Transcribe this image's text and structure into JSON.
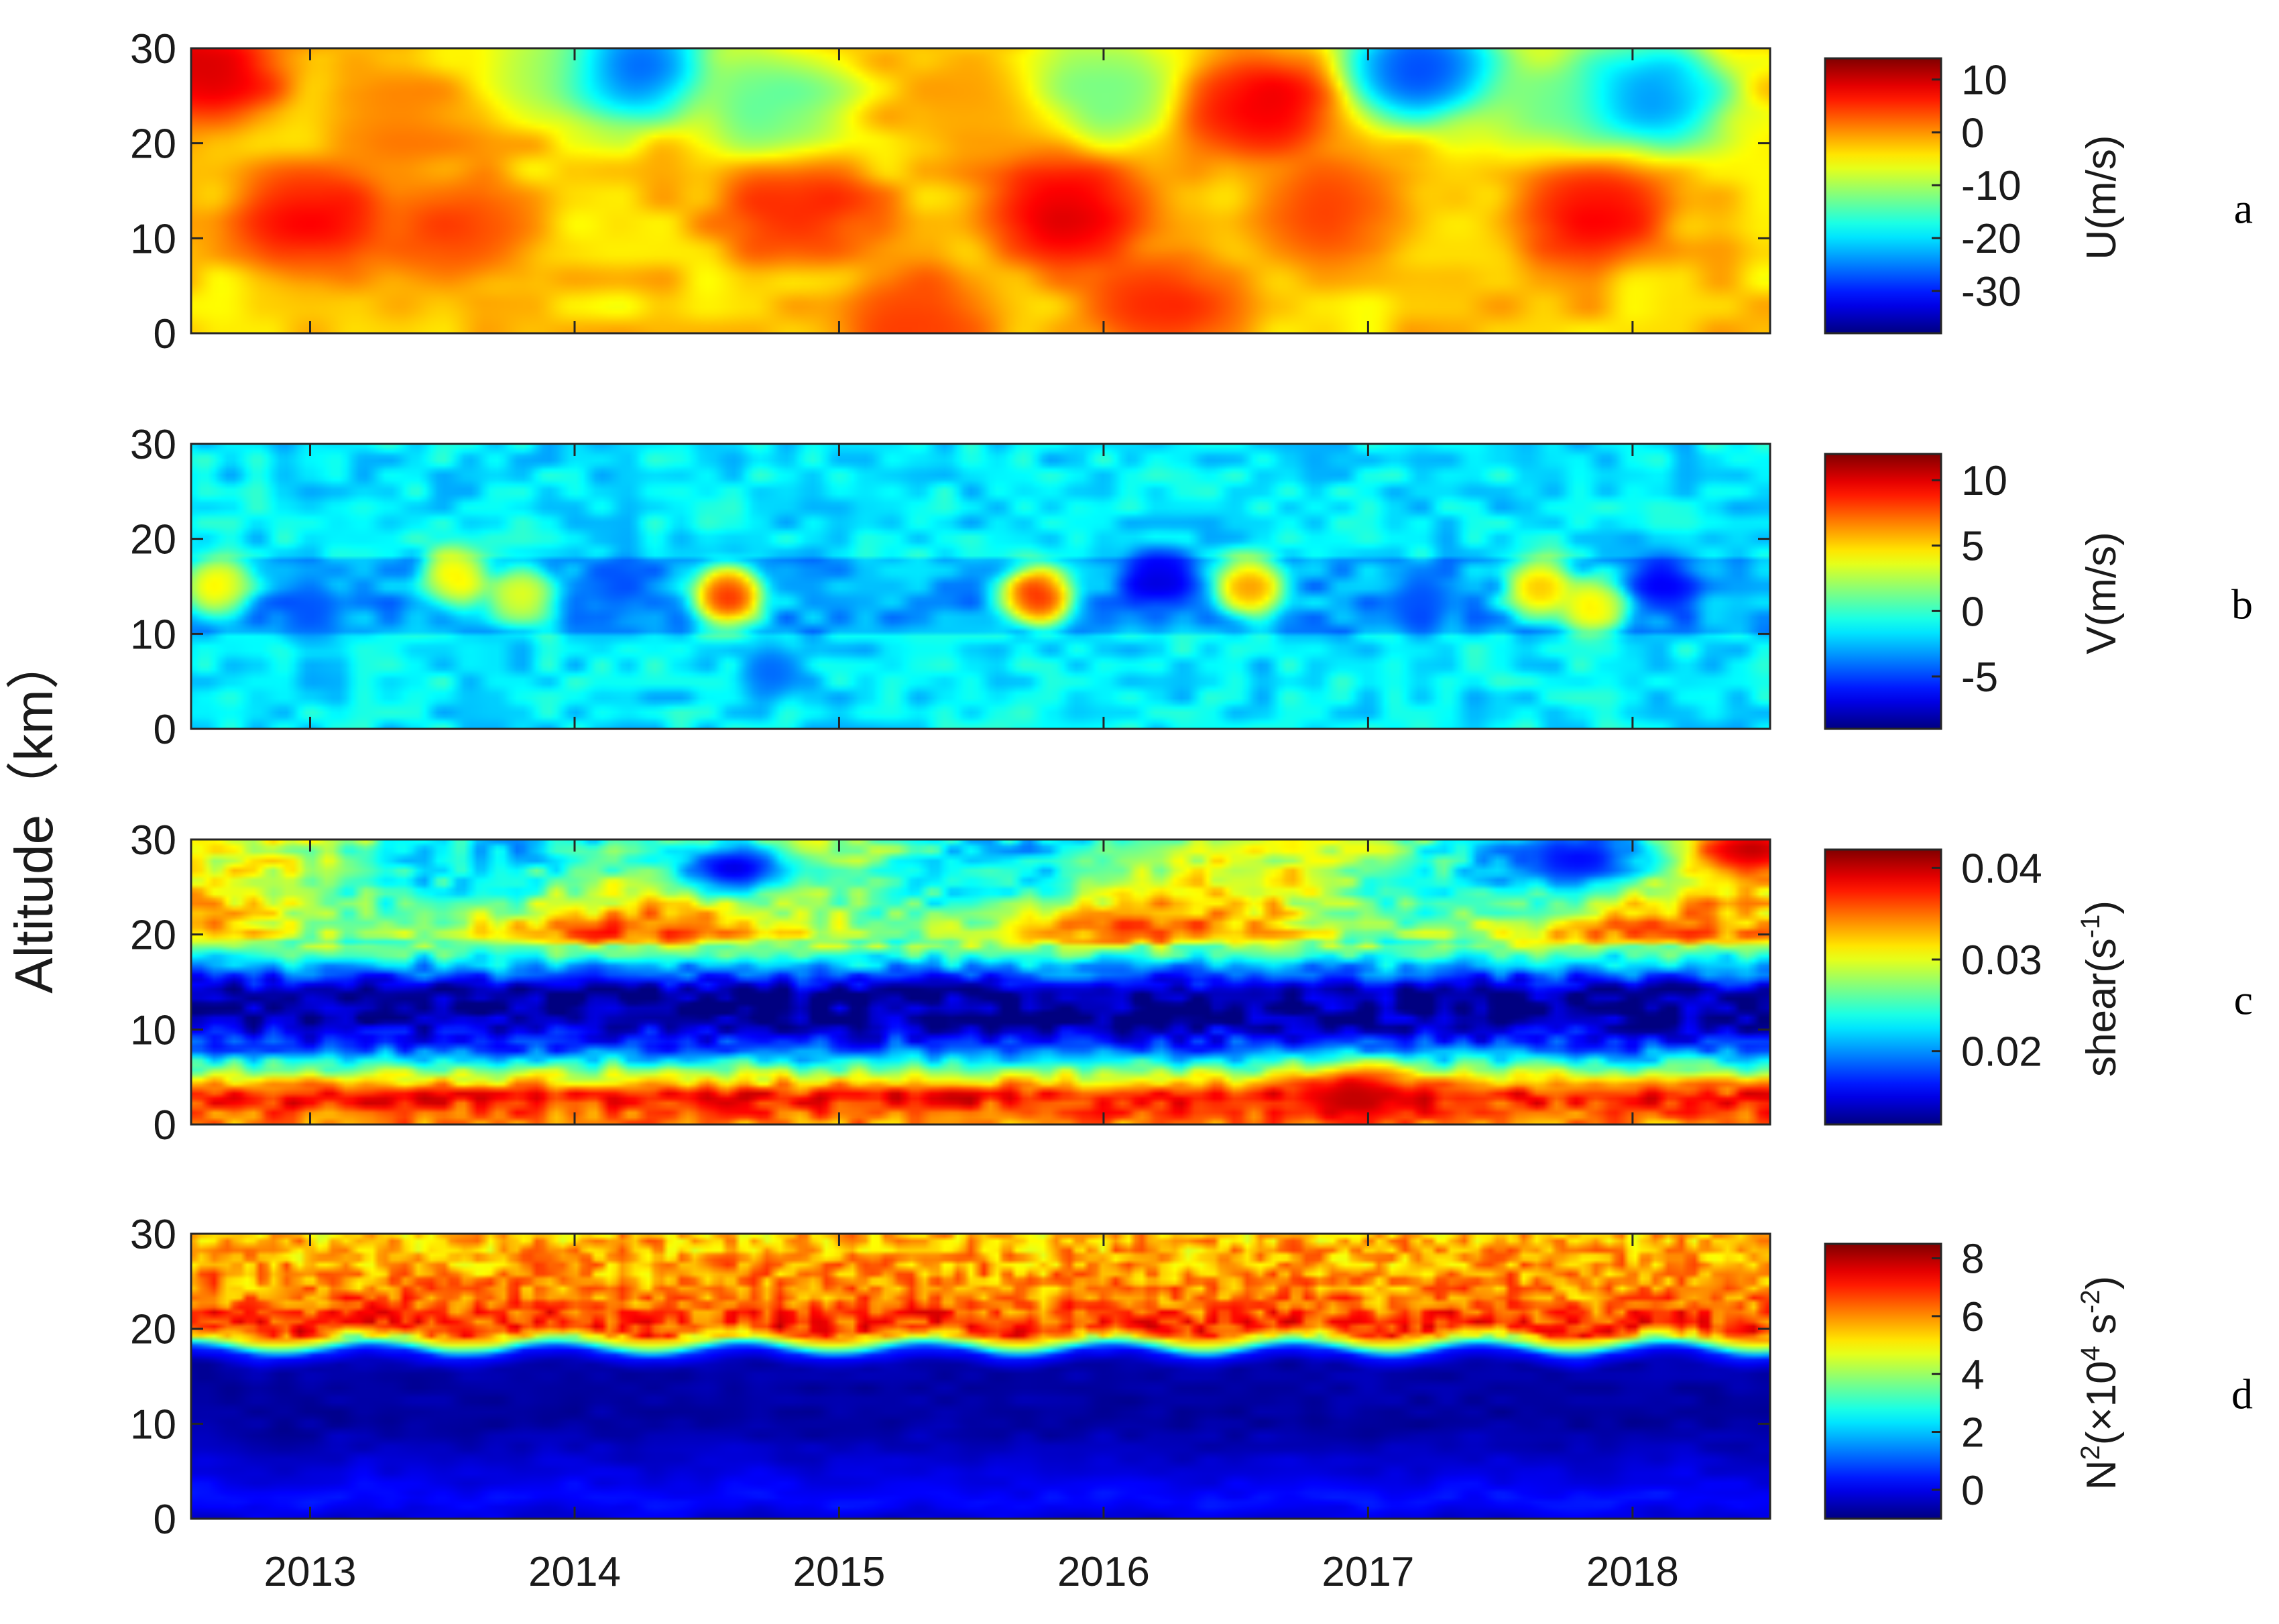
{
  "figure": {
    "ylabel": "Altitude（km）",
    "years": [
      "2013",
      "2014",
      "2015",
      "2016",
      "2017",
      "2018"
    ]
  },
  "chart_data": [
    {
      "panel": "a",
      "type": "heatmap",
      "variable": "U(m/s)",
      "colorbar_label": "U(m/s)",
      "colorbar_ticks": [
        "10",
        "0",
        "-10",
        "-20",
        "-30"
      ],
      "colorbar_values": [
        10,
        0,
        -10,
        -20,
        -30
      ],
      "colorbar_range": [
        -38,
        14
      ],
      "colormap": "jet",
      "ylim": [
        0,
        30
      ],
      "yticks": [
        0,
        10,
        20,
        30
      ],
      "xlim": [
        2012.55,
        2018.52
      ],
      "xticks": [
        2013,
        2014,
        2015,
        2016,
        2017,
        2018
      ],
      "features": [
        {
          "year": 2012.6,
          "alt": 28,
          "value": 12
        },
        {
          "year": 2013.35,
          "alt": 22,
          "value": 2
        },
        {
          "year": 2013.9,
          "alt": 28,
          "value": -10
        },
        {
          "year": 2014.2,
          "alt": 28,
          "value": -34
        },
        {
          "year": 2014.75,
          "alt": 24,
          "value": -16
        },
        {
          "year": 2015.5,
          "alt": 24,
          "value": 0
        },
        {
          "year": 2016.0,
          "alt": 26,
          "value": -15
        },
        {
          "year": 2016.6,
          "alt": 24,
          "value": 11
        },
        {
          "year": 2017.2,
          "alt": 28,
          "value": -34
        },
        {
          "year": 2017.7,
          "alt": 24,
          "value": -14
        },
        {
          "year": 2018.05,
          "alt": 25,
          "value": -30
        },
        {
          "year": 2013.0,
          "alt": 12,
          "value": 10
        },
        {
          "year": 2013.55,
          "alt": 11,
          "value": 6
        },
        {
          "year": 2014.85,
          "alt": 13,
          "value": 8
        },
        {
          "year": 2015.85,
          "alt": 13,
          "value": 12
        },
        {
          "year": 2016.85,
          "alt": 13,
          "value": 6
        },
        {
          "year": 2017.85,
          "alt": 13,
          "value": 10
        },
        {
          "year": 2015.3,
          "alt": 1,
          "value": 6
        },
        {
          "year": 2016.2,
          "alt": 3,
          "value": 8
        }
      ]
    },
    {
      "panel": "b",
      "type": "heatmap",
      "variable": "V(m/s)",
      "colorbar_label": "V(m/s)",
      "colorbar_ticks": [
        "10",
        "5",
        "0",
        "-5"
      ],
      "colorbar_values": [
        10,
        5,
        0,
        -5
      ],
      "colorbar_range": [
        -9,
        12
      ],
      "colormap": "jet",
      "ylim": [
        0,
        30
      ],
      "yticks": [
        0,
        10,
        20,
        30
      ],
      "xlim": [
        2012.55,
        2018.52
      ],
      "xticks": [
        2013,
        2014,
        2015,
        2016,
        2017,
        2018
      ],
      "features": [
        {
          "year": 2012.65,
          "alt": 15,
          "value": 6
        },
        {
          "year": 2013.55,
          "alt": 16,
          "value": 6
        },
        {
          "year": 2013.8,
          "alt": 14,
          "value": 5
        },
        {
          "year": 2014.58,
          "alt": 14,
          "value": 11
        },
        {
          "year": 2015.75,
          "alt": 14,
          "value": 11
        },
        {
          "year": 2016.55,
          "alt": 15,
          "value": 8
        },
        {
          "year": 2017.65,
          "alt": 15,
          "value": 7
        },
        {
          "year": 2017.85,
          "alt": 13,
          "value": 6
        },
        {
          "year": 2016.2,
          "alt": 16,
          "value": -8
        },
        {
          "year": 2018.12,
          "alt": 15,
          "value": -7
        },
        {
          "year": 2013.0,
          "alt": 12,
          "value": -5
        },
        {
          "year": 2014.15,
          "alt": 15,
          "value": -5
        },
        {
          "year": 2017.2,
          "alt": 13,
          "value": -5
        },
        {
          "year": 2014.75,
          "alt": 6,
          "value": -5
        }
      ]
    },
    {
      "panel": "c",
      "type": "heatmap",
      "variable": "shear(s^-1)",
      "colorbar_label": "shear(s",
      "colorbar_label_sup": "-1",
      "colorbar_label_end": ")",
      "colorbar_ticks": [
        "0.04",
        "0.03",
        "0.02"
      ],
      "colorbar_values": [
        0.04,
        0.03,
        0.02
      ],
      "colorbar_range": [
        0.012,
        0.042
      ],
      "colormap": "jet",
      "ylim": [
        0,
        30
      ],
      "yticks": [
        0,
        10,
        20,
        30
      ],
      "xlim": [
        2012.55,
        2018.52
      ],
      "xticks": [
        2013,
        2014,
        2015,
        2016,
        2017,
        2018
      ],
      "profile_by_altitude": [
        {
          "alt": 0,
          "value": 0.034
        },
        {
          "alt": 3,
          "value": 0.038
        },
        {
          "alt": 6,
          "value": 0.026
        },
        {
          "alt": 8,
          "value": 0.018
        },
        {
          "alt": 11,
          "value": 0.013
        },
        {
          "alt": 14,
          "value": 0.013
        },
        {
          "alt": 17,
          "value": 0.022
        },
        {
          "alt": 20,
          "value": 0.032
        },
        {
          "alt": 24,
          "value": 0.028
        },
        {
          "alt": 28,
          "value": 0.026
        },
        {
          "alt": 30,
          "value": 0.026
        }
      ],
      "features": [
        {
          "year": 2014.6,
          "alt": 27,
          "value": 0.015
        },
        {
          "year": 2017.8,
          "alt": 28,
          "value": 0.016
        },
        {
          "year": 2018.45,
          "alt": 29,
          "value": 0.04
        },
        {
          "year": 2016.95,
          "alt": 3,
          "value": 0.04
        }
      ]
    },
    {
      "panel": "d",
      "type": "heatmap",
      "variable": "N^2(×10^4 s^-2)",
      "colorbar_label": "N",
      "colorbar_label_parts": [
        "N",
        "2",
        "(×10",
        "4",
        " s",
        "-2",
        ")"
      ],
      "colorbar_ticks": [
        "8",
        "6",
        "4",
        "2",
        "0"
      ],
      "colorbar_values": [
        8,
        6,
        4,
        2,
        0
      ],
      "colorbar_range": [
        -1,
        8.5
      ],
      "colormap": "jet",
      "ylim": [
        0,
        30
      ],
      "yticks": [
        0,
        10,
        20,
        30
      ],
      "xlim": [
        2012.55,
        2018.52
      ],
      "xticks": [
        2013,
        2014,
        2015,
        2016,
        2017,
        2018
      ],
      "profile_by_altitude": [
        {
          "alt": 0,
          "value": -0.2
        },
        {
          "alt": 2,
          "value": 0.3
        },
        {
          "alt": 4,
          "value": 0.0
        },
        {
          "alt": 10,
          "value": -0.7
        },
        {
          "alt": 16,
          "value": -0.6
        },
        {
          "alt": 17.5,
          "value": 0.5
        },
        {
          "alt": 18.5,
          "value": 4.0
        },
        {
          "alt": 20,
          "value": 7.0
        },
        {
          "alt": 24,
          "value": 6.0
        },
        {
          "alt": 30,
          "value": 5.5
        }
      ]
    }
  ],
  "panel_labels": [
    "a",
    "b",
    "c",
    "d"
  ]
}
